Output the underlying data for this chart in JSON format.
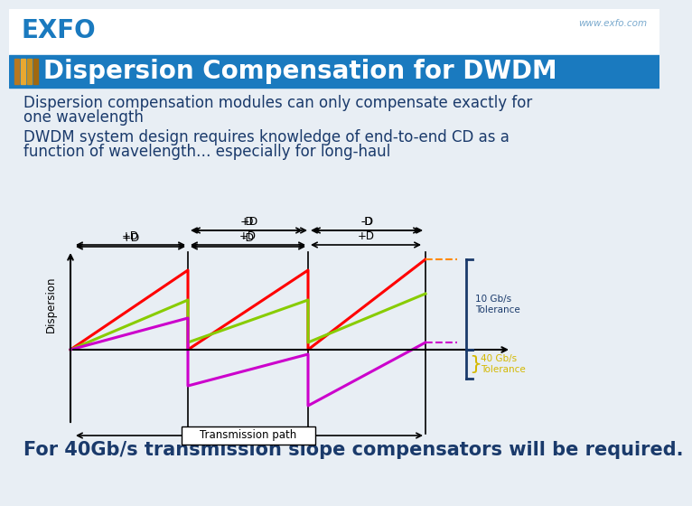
{
  "bg_color": "#e8eef4",
  "header_white_color": "#ffffff",
  "header_bar_color": "#1a7abf",
  "title_text": "Dispersion Compensation for DWDM",
  "title_color": "#ffffff",
  "title_fontsize": 20,
  "exfo_color": "#1a7abf",
  "website_text": "www.exfo.com",
  "website_color": "#7aaace",
  "subtitle1": "Dispersion compensation modules can only compensate exactly for",
  "subtitle2": "one wavelength",
  "body1": "DWDM system design requires knowledge of end-to-end CD as a",
  "body2": "function of wavelength… especially for long-haul",
  "footer_text": "For 40Gb/s transmission slope compensators will be required.",
  "footer_color": "#1a3a6b",
  "footer_fontsize": 15,
  "text_color": "#1a3a6b",
  "text_fontsize": 12,
  "disp_label": "Dispersion",
  "trans_label": "Transmission path",
  "minus_d_label": "-D",
  "plus_d_label": "+D",
  "tolerance_10gb_label": "10 Gb/s\nTolerance",
  "tolerance_40gb_label": "40 Gb/s\nTolerance",
  "line_color_red": "#ff0000",
  "line_color_green": "#88cc00",
  "line_color_purple": "#cc00cc",
  "bracket_color": "#1a3a6b",
  "dashed_orange_color": "#ff8800",
  "dashed_purple_color": "#cc00cc",
  "stripe_colors": [
    "#b87820",
    "#e8a830",
    "#c89020",
    "#a06810"
  ]
}
